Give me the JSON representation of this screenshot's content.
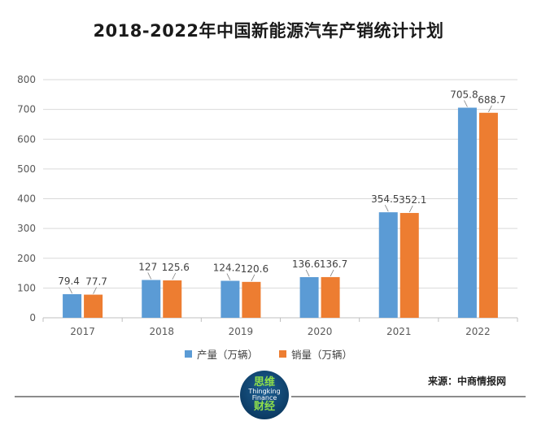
{
  "title": "2018-2022年中国新能源汽车产销统计计划",
  "source_text": "来源：中商情报网",
  "logo": {
    "line1": "思维",
    "line2": "Thingking",
    "line3": "Finance",
    "line4": "财经"
  },
  "colors": {
    "series1": "#5b9bd5",
    "series2": "#ed7d31",
    "grid": "#d9d9d9",
    "axis_text": "#595959"
  },
  "chart_data": {
    "type": "bar",
    "title": "2018-2022年中国新能源汽车产销统计计划",
    "xlabel": "",
    "ylabel": "",
    "categories": [
      "2017",
      "2018",
      "2019",
      "2020",
      "2021",
      "2022"
    ],
    "series": [
      {
        "name": "产量（万辆）",
        "values": [
          79.4,
          127,
          124.2,
          136.6,
          354.5,
          705.8
        ],
        "labels": [
          "79.4",
          "127",
          "124.2",
          "136.6",
          "354.5",
          "705.8"
        ]
      },
      {
        "name": "销量（万辆）",
        "values": [
          77.7,
          125.6,
          120.6,
          136.7,
          352.1,
          688.7
        ],
        "labels": [
          "77.7",
          "125.6",
          "120.6",
          "136.7",
          "352.1",
          "688.7"
        ]
      }
    ],
    "ylim": [
      0,
      800
    ],
    "yticks": [
      "0",
      "100",
      "200",
      "300",
      "400",
      "500",
      "600",
      "700",
      "800"
    ],
    "grid": true,
    "legend_position": "bottom"
  }
}
